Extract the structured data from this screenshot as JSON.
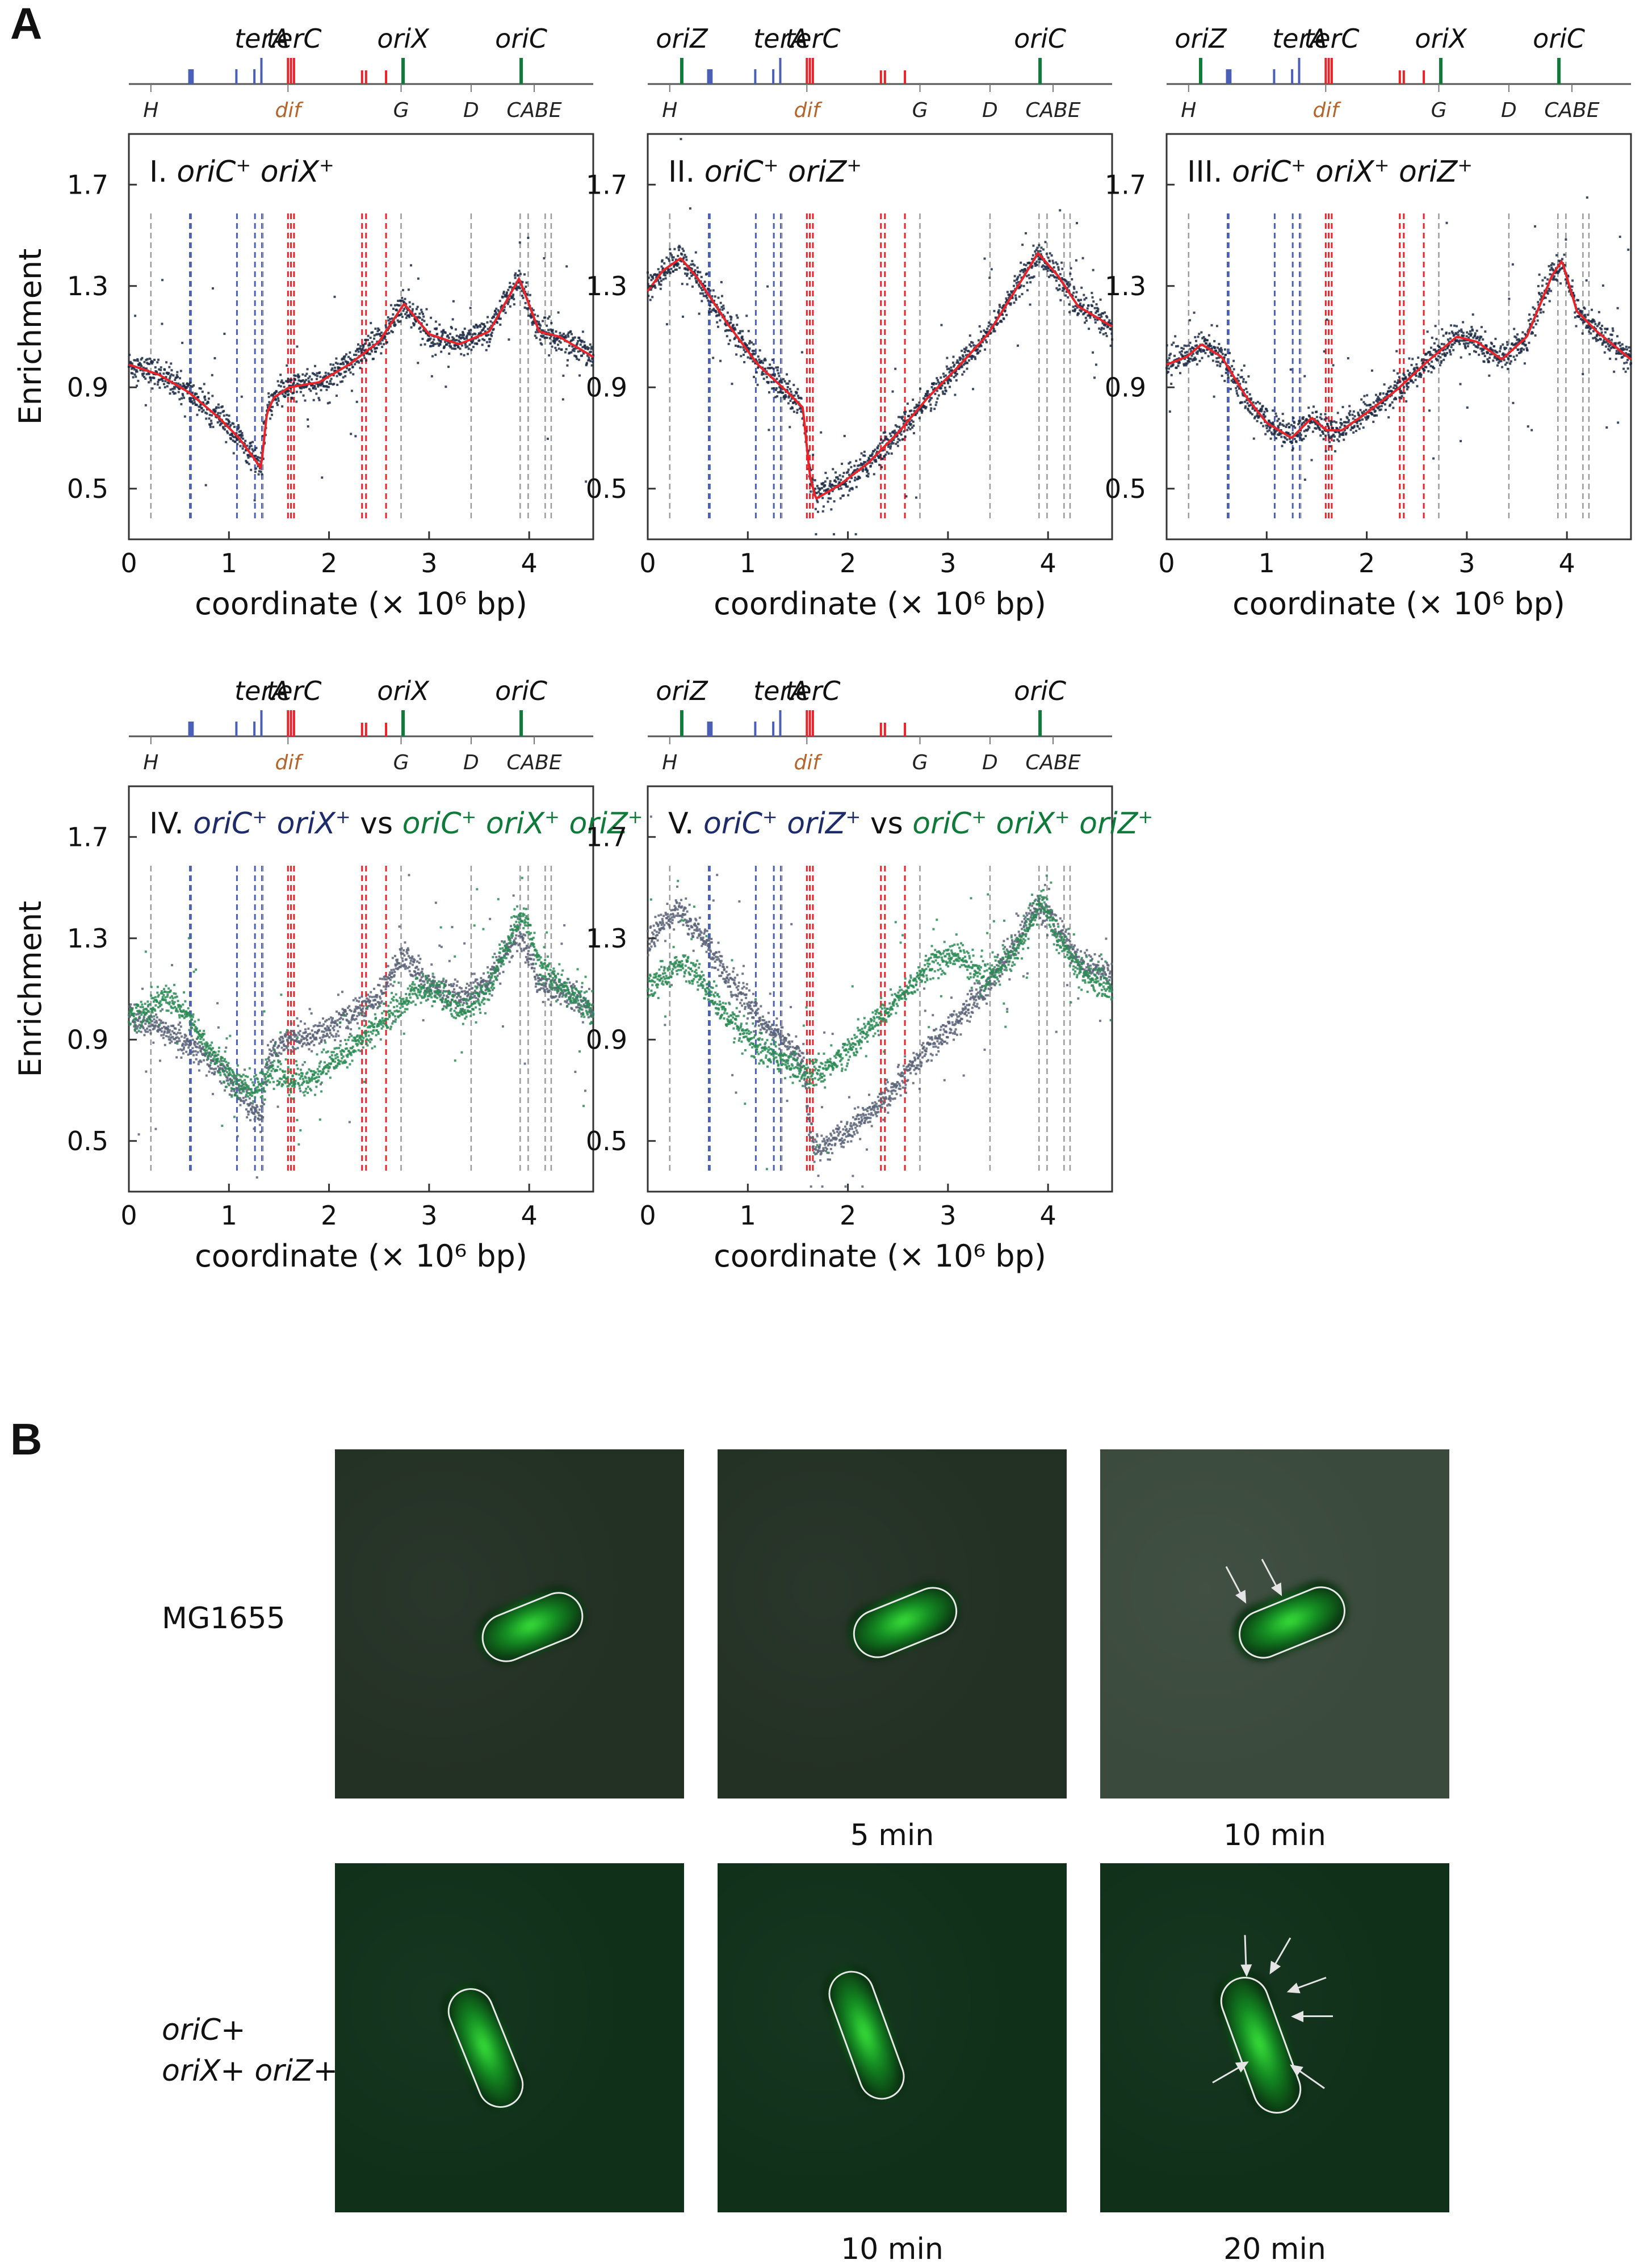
{
  "panels": {
    "A": {
      "letter": "A"
    },
    "B": {
      "letter": "B"
    }
  },
  "colors": {
    "terminus_blue": "#4a5fb5",
    "terminus_red": "#e8232a",
    "origin_green": "#0f7a3a",
    "neutral_grey": "#9a9a9a",
    "dif_brown": "#b4652b",
    "scatter_navy": "#1c2a44",
    "scatter_slate": "#5a6378",
    "scatter_green": "#2c8b55",
    "fit_red": "#e8232a",
    "title_navy": "#1e2b6b",
    "title_green": "#0f7a3a",
    "microscopy_bg": "#1c2a1e",
    "microscopy_signal": "#3be63b"
  },
  "genome_map": {
    "top_labels": [
      "oriZ",
      "terA",
      "terC",
      "oriX",
      "oriC"
    ],
    "bottom_labels": [
      "H",
      "dif",
      "G",
      "D",
      "CABE"
    ]
  },
  "chart_data": [
    {
      "id": "I",
      "type": "scatter",
      "title_numeral": "I.",
      "title_parts": [
        {
          "text": "oriC",
          "sup": "+",
          "style": "italic",
          "color": "#111111"
        },
        {
          "text": "oriX",
          "sup": "+",
          "style": "italic",
          "color": "#111111"
        }
      ],
      "map_labels": [
        "terA",
        "terC",
        "oriX",
        "oriC"
      ],
      "xlabel": "coordinate (× 10⁶ bp)",
      "ylabel": "Enrichment",
      "xlim": [
        0,
        4.64
      ],
      "ylim": [
        0.3,
        1.9
      ],
      "xticks": [
        "0",
        "1",
        "2",
        "3",
        "4"
      ],
      "yticks": [
        "0.5",
        "0.9",
        "1.3",
        "1.7"
      ],
      "series": [
        {
          "name": "oriC+ oriX+",
          "color": "#1c2a44",
          "x": [
            0.0,
            0.3,
            0.6,
            0.9,
            1.1,
            1.25,
            1.32,
            1.38,
            1.45,
            1.6,
            1.9,
            2.2,
            2.5,
            2.75,
            3.0,
            3.3,
            3.6,
            3.9,
            4.1,
            4.3,
            4.64
          ],
          "y": [
            0.99,
            0.95,
            0.88,
            0.78,
            0.7,
            0.62,
            0.58,
            0.8,
            0.86,
            0.9,
            0.92,
            0.99,
            1.08,
            1.23,
            1.11,
            1.07,
            1.12,
            1.33,
            1.12,
            1.1,
            1.02
          ]
        }
      ]
    },
    {
      "id": "II",
      "type": "scatter",
      "title_numeral": "II.",
      "title_parts": [
        {
          "text": "oriC",
          "sup": "+",
          "style": "italic",
          "color": "#111111"
        },
        {
          "text": "oriZ",
          "sup": "+",
          "style": "italic",
          "color": "#111111"
        }
      ],
      "map_labels": [
        "oriZ",
        "terA",
        "terC",
        "oriC"
      ],
      "xlabel": "coordinate (× 10⁶ bp)",
      "ylabel": "Enrichment",
      "xlim": [
        0,
        4.64
      ],
      "ylim": [
        0.3,
        1.9
      ],
      "xticks": [
        "0",
        "1",
        "2",
        "3",
        "4"
      ],
      "yticks": [
        "0.5",
        "0.9",
        "1.3",
        "1.7"
      ],
      "series": [
        {
          "name": "oriC+ oriZ+",
          "color": "#1c2a44",
          "x": [
            0.0,
            0.15,
            0.33,
            0.5,
            0.8,
            1.1,
            1.4,
            1.55,
            1.62,
            1.68,
            1.9,
            2.2,
            2.5,
            2.8,
            3.1,
            3.4,
            3.7,
            3.9,
            4.1,
            4.3,
            4.64
          ],
          "y": [
            1.28,
            1.36,
            1.41,
            1.33,
            1.15,
            0.99,
            0.88,
            0.82,
            0.55,
            0.46,
            0.51,
            0.6,
            0.72,
            0.86,
            0.98,
            1.11,
            1.3,
            1.43,
            1.34,
            1.22,
            1.14
          ]
        }
      ]
    },
    {
      "id": "III",
      "type": "scatter",
      "title_numeral": "III.",
      "title_parts": [
        {
          "text": "oriC",
          "sup": "+",
          "style": "italic",
          "color": "#111111"
        },
        {
          "text": "oriX",
          "sup": "+",
          "style": "italic",
          "color": "#111111"
        },
        {
          "text": "oriZ",
          "sup": "+",
          "style": "italic",
          "color": "#111111"
        }
      ],
      "map_labels": [
        "oriZ",
        "terA",
        "terC",
        "oriX",
        "oriC"
      ],
      "xlabel": "coordinate (× 10⁶ bp)",
      "ylabel": "Enrichment",
      "xlim": [
        0,
        4.64
      ],
      "ylim": [
        0.3,
        1.9
      ],
      "xticks": [
        "0",
        "1",
        "2",
        "3",
        "4"
      ],
      "yticks": [
        "0.5",
        "0.9",
        "1.3",
        "1.7"
      ],
      "series": [
        {
          "name": "oriC+ oriX+ oriZ+",
          "color": "#1c2a44",
          "x": [
            0.0,
            0.2,
            0.35,
            0.55,
            0.8,
            1.0,
            1.25,
            1.45,
            1.6,
            1.75,
            2.0,
            2.3,
            2.6,
            2.9,
            3.1,
            3.35,
            3.6,
            3.85,
            3.95,
            4.1,
            4.3,
            4.64
          ],
          "y": [
            0.99,
            1.02,
            1.07,
            1.02,
            0.86,
            0.76,
            0.7,
            0.78,
            0.73,
            0.73,
            0.8,
            0.89,
            1.0,
            1.1,
            1.08,
            1.01,
            1.1,
            1.34,
            1.4,
            1.2,
            1.12,
            1.01
          ]
        }
      ]
    },
    {
      "id": "IV",
      "type": "scatter",
      "title_numeral": "IV.",
      "title_parts": [
        {
          "text": "oriC",
          "sup": "+",
          "style": "italic",
          "color": "#1e2b6b"
        },
        {
          "text": "oriX",
          "sup": "+",
          "style": "italic",
          "color": "#1e2b6b"
        },
        {
          "text": "vs",
          "sup": "",
          "style": "normal",
          "color": "#111111"
        },
        {
          "text": "oriC",
          "sup": "+",
          "style": "italic",
          "color": "#0f7a3a"
        },
        {
          "text": "oriX",
          "sup": "+",
          "style": "italic",
          "color": "#0f7a3a"
        },
        {
          "text": "oriZ",
          "sup": "+",
          "style": "italic",
          "color": "#0f7a3a"
        }
      ],
      "map_labels": [
        "terA",
        "terC",
        "oriX",
        "oriC"
      ],
      "xlabel": "coordinate (× 10⁶ bp)",
      "ylabel": "Enrichment",
      "xlim": [
        0,
        4.64
      ],
      "ylim": [
        0.3,
        1.9
      ],
      "xticks": [
        "0",
        "1",
        "2",
        "3",
        "4"
      ],
      "yticks": [
        "0.5",
        "0.9",
        "1.3",
        "1.7"
      ],
      "series": [
        {
          "name": "oriC+ oriX+",
          "color": "#5a6378",
          "x": [
            0.0,
            0.3,
            0.6,
            0.9,
            1.1,
            1.25,
            1.32,
            1.38,
            1.45,
            1.6,
            1.9,
            2.2,
            2.5,
            2.75,
            3.0,
            3.3,
            3.6,
            3.9,
            4.1,
            4.3,
            4.64
          ],
          "y": [
            0.99,
            0.95,
            0.88,
            0.78,
            0.7,
            0.62,
            0.58,
            0.8,
            0.86,
            0.9,
            0.92,
            0.99,
            1.08,
            1.23,
            1.11,
            1.07,
            1.12,
            1.33,
            1.12,
            1.1,
            1.02
          ]
        },
        {
          "name": "oriC+ oriX+ oriZ+",
          "color": "#2c8b55",
          "x": [
            0.0,
            0.2,
            0.35,
            0.55,
            0.8,
            1.0,
            1.25,
            1.45,
            1.6,
            1.75,
            2.0,
            2.3,
            2.6,
            2.9,
            3.1,
            3.35,
            3.6,
            3.85,
            3.95,
            4.1,
            4.3,
            4.64
          ],
          "y": [
            0.99,
            1.02,
            1.07,
            1.02,
            0.86,
            0.76,
            0.7,
            0.78,
            0.73,
            0.73,
            0.8,
            0.89,
            1.0,
            1.1,
            1.08,
            1.01,
            1.1,
            1.34,
            1.4,
            1.2,
            1.12,
            1.01
          ]
        }
      ]
    },
    {
      "id": "V",
      "type": "scatter",
      "title_numeral": "V.",
      "title_parts": [
        {
          "text": "oriC",
          "sup": "+",
          "style": "italic",
          "color": "#1e2b6b"
        },
        {
          "text": "oriZ",
          "sup": "+",
          "style": "italic",
          "color": "#1e2b6b"
        },
        {
          "text": "vs",
          "sup": "",
          "style": "normal",
          "color": "#111111"
        },
        {
          "text": "oriC",
          "sup": "+",
          "style": "italic",
          "color": "#0f7a3a"
        },
        {
          "text": "oriX",
          "sup": "+",
          "style": "italic",
          "color": "#0f7a3a"
        },
        {
          "text": "oriZ",
          "sup": "+",
          "style": "italic",
          "color": "#0f7a3a"
        }
      ],
      "map_labels": [
        "oriZ",
        "terA",
        "terC",
        "oriC"
      ],
      "xlabel": "coordinate (× 10⁶ bp)",
      "ylabel": "Enrichment",
      "xlim": [
        0,
        4.64
      ],
      "ylim": [
        0.3,
        1.9
      ],
      "xticks": [
        "0",
        "1",
        "2",
        "3",
        "4"
      ],
      "yticks": [
        "0.5",
        "0.9",
        "1.3",
        "1.7"
      ],
      "series": [
        {
          "name": "oriC+ oriZ+",
          "color": "#5a6378",
          "x": [
            0.0,
            0.15,
            0.33,
            0.5,
            0.8,
            1.1,
            1.4,
            1.55,
            1.62,
            1.68,
            1.9,
            2.2,
            2.5,
            2.8,
            3.1,
            3.4,
            3.7,
            3.9,
            4.1,
            4.3,
            4.64
          ],
          "y": [
            1.28,
            1.36,
            1.41,
            1.33,
            1.15,
            0.99,
            0.88,
            0.82,
            0.55,
            0.46,
            0.51,
            0.6,
            0.72,
            0.86,
            0.98,
            1.11,
            1.3,
            1.43,
            1.34,
            1.22,
            1.14
          ]
        },
        {
          "name": "oriC+ oriX+ oriZ+",
          "color": "#2c8b55",
          "x": [
            0.0,
            0.2,
            0.35,
            0.55,
            0.8,
            1.0,
            1.25,
            1.45,
            1.6,
            1.75,
            2.0,
            2.3,
            2.6,
            2.9,
            3.1,
            3.35,
            3.6,
            3.85,
            3.95,
            4.1,
            4.3,
            4.64
          ],
          "y": [
            1.1,
            1.16,
            1.2,
            1.13,
            0.98,
            0.9,
            0.84,
            0.8,
            0.76,
            0.78,
            0.86,
            0.98,
            1.1,
            1.22,
            1.24,
            1.14,
            1.2,
            1.38,
            1.45,
            1.3,
            1.18,
            1.1
          ]
        }
      ]
    }
  ],
  "microscopy": {
    "rows": [
      {
        "label_lines": [
          "MG1655"
        ],
        "frames": [
          {
            "time": "",
            "arrows": 0
          },
          {
            "time": "5 min",
            "arrows": 0
          },
          {
            "time": "10 min",
            "arrows": 2
          }
        ]
      },
      {
        "label_lines": [
          "oriC+",
          "oriX+ oriZ+"
        ],
        "frames": [
          {
            "time": "",
            "arrows": 0
          },
          {
            "time": "10 min",
            "arrows": 0
          },
          {
            "time": "20 min",
            "arrows": 6
          }
        ]
      }
    ]
  }
}
